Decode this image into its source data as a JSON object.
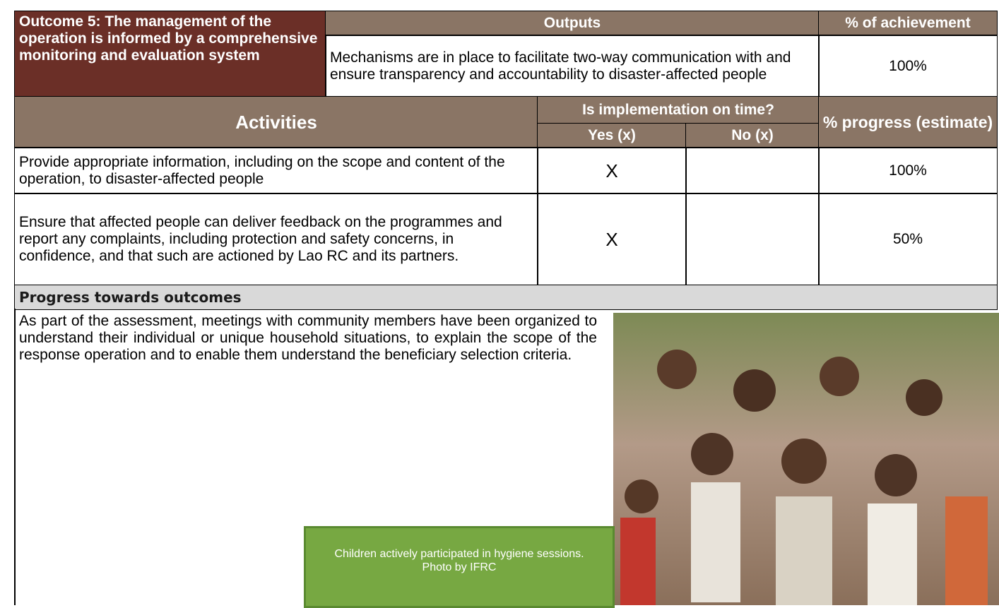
{
  "outcome": "Outcome 5:  The management of the operation is informed by a comprehensive monitoring and evaluation system",
  "outputs_header": "Outputs",
  "achievement_header": "% of achievement",
  "output": {
    "text": "Mechanisms are in place to facilitate two-way communication with and ensure transparency and accountability to disaster-affected people",
    "achievement": "100%"
  },
  "activities_header": "Activities",
  "on_time_header": "Is implementation on time?",
  "yes_header": "Yes (x)",
  "no_header": "No (x)",
  "progress_header": "% progress (estimate)",
  "activities": [
    {
      "text": "Provide appropriate information, including on the scope and content of the operation, to disaster-affected people",
      "yes": "X",
      "progress": "100%"
    },
    {
      "text": "Ensure that affected people can deliver feedback on the programmes and report any complaints, including protection and safety concerns, in confidence, and that such are actioned by Lao RC and its partners.",
      "yes": "X",
      "progress": "50%"
    }
  ],
  "progress_section": {
    "title": "Progress towards outcomes",
    "text": "As part of the assessment, meetings with community members have been organized to understand their individual or unique household situations, to explain the scope of the response operation and to enable them understand the beneficiary selection criteria.",
    "caption": "Children actively participated in hygiene sessions. Photo by IFRC"
  }
}
